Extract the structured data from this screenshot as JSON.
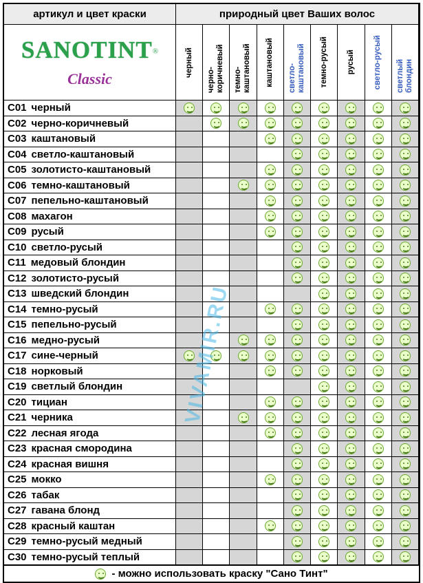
{
  "chart_data": {
    "type": "table",
    "header": {
      "left_title": "артикул и цвет краски",
      "right_title": "природный цвет Ваших волос"
    },
    "brand": {
      "name": "SANOTINT",
      "reg": "®",
      "line": "Classic"
    },
    "columns": [
      {
        "label": "черный",
        "accent": false
      },
      {
        "label": "черно-коричневый",
        "accent": false
      },
      {
        "label": "темно-каштановый",
        "accent": false
      },
      {
        "label": "каштановый",
        "accent": false
      },
      {
        "label": "светло-каштановый",
        "accent": true
      },
      {
        "label": "темно-русый",
        "accent": false
      },
      {
        "label": "русый",
        "accent": false
      },
      {
        "label": "светло-русый",
        "accent": true
      },
      {
        "label": "светлый блондин",
        "accent": true
      }
    ],
    "rows": [
      {
        "code": "C01",
        "name": "черный",
        "cells": [
          1,
          1,
          1,
          1,
          1,
          1,
          1,
          1,
          1
        ]
      },
      {
        "code": "C02",
        "name": "черно-коричневый",
        "cells": [
          0,
          1,
          1,
          1,
          1,
          1,
          1,
          1,
          1
        ]
      },
      {
        "code": "C03",
        "name": "каштановый",
        "cells": [
          0,
          0,
          0,
          1,
          1,
          1,
          1,
          1,
          1
        ]
      },
      {
        "code": "C04",
        "name": "светло-каштановый",
        "cells": [
          0,
          0,
          0,
          0,
          1,
          1,
          1,
          1,
          1
        ]
      },
      {
        "code": "C05",
        "name": "золотисто-каштановый",
        "cells": [
          0,
          0,
          0,
          1,
          1,
          1,
          1,
          1,
          1
        ]
      },
      {
        "code": "C06",
        "name": "темно-каштановый",
        "cells": [
          0,
          0,
          1,
          1,
          1,
          1,
          1,
          1,
          1
        ]
      },
      {
        "code": "C07",
        "name": "пепельно-каштановый",
        "cells": [
          0,
          0,
          0,
          1,
          1,
          1,
          1,
          1,
          1
        ]
      },
      {
        "code": "C08",
        "name": "махагон",
        "cells": [
          0,
          0,
          0,
          1,
          1,
          1,
          1,
          1,
          1
        ]
      },
      {
        "code": "C09",
        "name": "русый",
        "cells": [
          0,
          0,
          0,
          1,
          1,
          1,
          1,
          1,
          1
        ]
      },
      {
        "code": "C10",
        "name": "светло-русый",
        "cells": [
          0,
          0,
          0,
          0,
          1,
          1,
          1,
          1,
          1
        ]
      },
      {
        "code": "C11",
        "name": "медовый блондин",
        "cells": [
          0,
          0,
          0,
          0,
          1,
          1,
          1,
          1,
          1
        ]
      },
      {
        "code": "C12",
        "name": "золотисто-русый",
        "cells": [
          0,
          0,
          0,
          0,
          1,
          1,
          1,
          1,
          1
        ]
      },
      {
        "code": "C13",
        "name": "шведский блондин",
        "cells": [
          0,
          0,
          0,
          0,
          0,
          1,
          1,
          1,
          1
        ]
      },
      {
        "code": "C14",
        "name": "темно-русый",
        "cells": [
          0,
          0,
          0,
          1,
          1,
          1,
          1,
          1,
          1
        ]
      },
      {
        "code": "C15",
        "name": "пепельно-русый",
        "cells": [
          0,
          0,
          0,
          0,
          1,
          1,
          1,
          1,
          1
        ]
      },
      {
        "code": "C16",
        "name": "медно-русый",
        "cells": [
          0,
          0,
          1,
          1,
          1,
          1,
          1,
          1,
          1
        ]
      },
      {
        "code": "C17",
        "name": "сине-черный",
        "cells": [
          1,
          1,
          1,
          1,
          1,
          1,
          1,
          1,
          1
        ]
      },
      {
        "code": "C18",
        "name": "норковый",
        "cells": [
          0,
          0,
          0,
          1,
          1,
          1,
          1,
          1,
          1
        ]
      },
      {
        "code": "C19",
        "name": "светлый блондин",
        "cells": [
          0,
          0,
          0,
          0,
          0,
          1,
          1,
          1,
          1
        ]
      },
      {
        "code": "C20",
        "name": "тициан",
        "cells": [
          0,
          0,
          0,
          1,
          1,
          1,
          1,
          1,
          1
        ]
      },
      {
        "code": "C21",
        "name": "черника",
        "cells": [
          0,
          0,
          1,
          1,
          1,
          1,
          1,
          1,
          1
        ]
      },
      {
        "code": "C22",
        "name": "лесная ягода",
        "cells": [
          0,
          0,
          0,
          1,
          1,
          1,
          1,
          1,
          1
        ]
      },
      {
        "code": "C23",
        "name": "красная смородина",
        "cells": [
          0,
          0,
          0,
          0,
          1,
          1,
          1,
          1,
          1
        ]
      },
      {
        "code": "C24",
        "name": "красная вишня",
        "cells": [
          0,
          0,
          0,
          0,
          1,
          1,
          1,
          1,
          1
        ]
      },
      {
        "code": "C25",
        "name": "мокко",
        "cells": [
          0,
          0,
          0,
          1,
          1,
          1,
          1,
          1,
          1
        ]
      },
      {
        "code": "C26",
        "name": "табак",
        "cells": [
          0,
          0,
          0,
          0,
          1,
          1,
          1,
          1,
          1
        ]
      },
      {
        "code": "C27",
        "name": "гавана блонд",
        "cells": [
          0,
          0,
          0,
          0,
          1,
          1,
          1,
          1,
          1
        ]
      },
      {
        "code": "C28",
        "name": "красный каштан",
        "cells": [
          0,
          0,
          0,
          1,
          1,
          1,
          1,
          1,
          1
        ]
      },
      {
        "code": "C29",
        "name": "темно-русый медный",
        "cells": [
          0,
          0,
          0,
          0,
          1,
          1,
          1,
          1,
          1
        ]
      },
      {
        "code": "C30",
        "name": "темно-русый теплый",
        "cells": [
          0,
          0,
          0,
          0,
          1,
          1,
          1,
          1,
          1
        ]
      }
    ],
    "legend_text": "- можно использовать краску \"Сано Тинт\"",
    "watermark": "VIVAMIR.RU",
    "colors": {
      "brand_green": "#2ba14c",
      "classic_purple": "#993399",
      "accent_blue": "#3a5fbf",
      "empty_column_gray": "#d6d6d6",
      "smiley_outline_green": "#6aa72f",
      "smiley_fill": "#eaffc9",
      "watermark_cyan": "#4db8e8"
    }
  }
}
